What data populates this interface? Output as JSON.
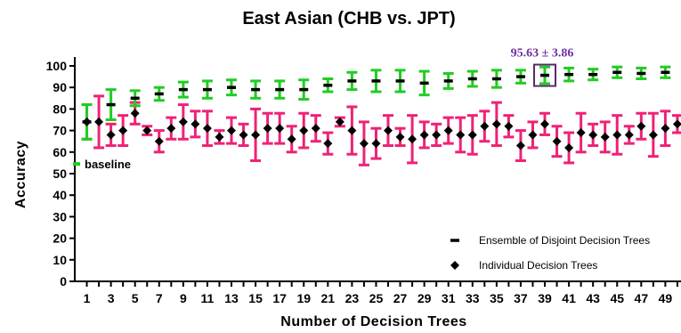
{
  "chart_data": {
    "type": "scatter",
    "title": "East Asian (CHB vs. JPT)",
    "xlabel": "Number of Decision Trees",
    "ylabel": "Accuracy",
    "xlim": [
      0,
      50.3
    ],
    "ylim": [
      0,
      100
    ],
    "xticks": [
      1,
      3,
      5,
      7,
      9,
      11,
      13,
      15,
      17,
      19,
      21,
      23,
      25,
      27,
      29,
      31,
      33,
      35,
      37,
      39,
      41,
      43,
      45,
      47,
      49
    ],
    "yticks": [
      0,
      10,
      20,
      30,
      40,
      50,
      60,
      70,
      80,
      90,
      100
    ],
    "baseline": {
      "label": "baseline",
      "value": 54.5,
      "x": 0
    },
    "annotation": {
      "text": "95.63 ± 3.86",
      "x": 39,
      "y": 95.63,
      "color": "#7030a0"
    },
    "colors": {
      "ensemble_error": "#22cc22",
      "individual_error": "#ee2277",
      "marker": "#000000",
      "annotation_box": "#5a2a6a"
    },
    "series": [
      {
        "name": "Ensemble of Disjoint Decision Trees",
        "marker": "dash",
        "error_color": "#22cc22",
        "x": [
          1,
          3,
          5,
          7,
          9,
          11,
          13,
          15,
          17,
          19,
          21,
          23,
          25,
          27,
          29,
          31,
          33,
          35,
          37,
          39,
          41,
          43,
          45,
          47,
          49
        ],
        "y": [
          74,
          82,
          85,
          87,
          89,
          89,
          90,
          89,
          89,
          89,
          91,
          93,
          93,
          93,
          92,
          93,
          94,
          94,
          95,
          95.63,
          96,
          96,
          97,
          96.5,
          97
        ],
        "err": [
          8,
          7,
          3.5,
          3,
          3.5,
          4,
          3.5,
          4,
          4,
          4.5,
          3,
          4,
          5,
          5,
          5.5,
          3.5,
          3.5,
          4,
          3,
          3.86,
          3,
          2.5,
          2.5,
          2.5,
          2.5
        ]
      },
      {
        "name": "Individual Decision Trees",
        "marker": "diamond",
        "error_color": "#ee2277",
        "x": [
          1,
          2,
          3,
          4,
          5,
          6,
          7,
          8,
          9,
          10,
          11,
          12,
          13,
          14,
          15,
          16,
          17,
          18,
          19,
          20,
          21,
          22,
          23,
          24,
          25,
          26,
          27,
          28,
          29,
          30,
          31,
          32,
          33,
          34,
          35,
          36,
          37,
          38,
          39,
          40,
          41,
          42,
          43,
          44,
          45,
          46,
          47,
          48,
          49,
          50
        ],
        "y": [
          74,
          74,
          68,
          70,
          78,
          70,
          65,
          71,
          74,
          73,
          71,
          67,
          70,
          68,
          68,
          71,
          71,
          66,
          70,
          71,
          64,
          74,
          70,
          64,
          64,
          70,
          67,
          66,
          68,
          68,
          70,
          68,
          68,
          72,
          73,
          72,
          63,
          68,
          73,
          65,
          62,
          69,
          68,
          67,
          68,
          68,
          72,
          68,
          71,
          73
        ],
        "err": [
          8,
          12,
          5,
          7,
          5,
          2,
          5,
          5,
          8,
          6,
          8,
          3,
          6,
          5,
          12,
          7,
          7,
          6,
          8,
          6,
          5,
          2,
          11,
          10,
          7,
          7,
          4,
          11,
          6,
          5,
          6,
          8,
          9,
          7,
          10,
          5,
          7,
          6,
          5,
          7,
          7,
          9,
          5,
          7,
          9,
          4,
          6,
          10,
          8,
          4
        ]
      }
    ],
    "legend": {
      "position": "bottom-right",
      "items": [
        {
          "label": "Ensemble of Disjoint Decision Trees",
          "marker": "dash"
        },
        {
          "label": "Individual Decision Trees",
          "marker": "diamond"
        }
      ]
    }
  }
}
